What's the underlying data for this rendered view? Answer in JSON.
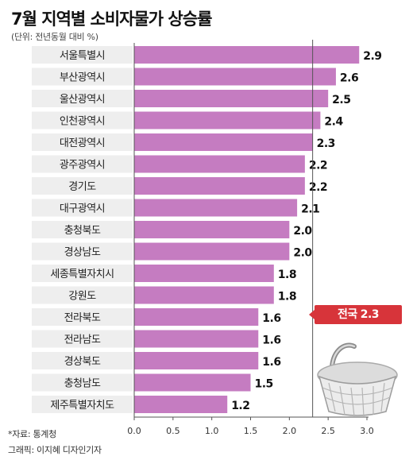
{
  "title": "7월 지역별 소비자물가 상승률",
  "unit_note": "(단위: 전년동월 대비 %)",
  "callout": {
    "label": "전국",
    "value": "2.3"
  },
  "footer": {
    "source": "*자료: 통계청",
    "graphic": "그래픽: 이지혜 디자인기자"
  },
  "colors": {
    "bar": "#c57cc1",
    "label_bg": "#eeeeee",
    "callout": "#d7343a",
    "national_line": "#555555"
  },
  "icons": [
    "shopping-basket-icon"
  ],
  "chart_data": {
    "type": "bar",
    "orientation": "horizontal",
    "categories": [
      "서울특별시",
      "부산광역시",
      "울산광역시",
      "인천광역시",
      "대전광역시",
      "광주광역시",
      "경기도",
      "대구광역시",
      "충청북도",
      "경상남도",
      "세종특별자치시",
      "강원도",
      "전라북도",
      "전라남도",
      "경상북도",
      "충청남도",
      "제주특별자치도"
    ],
    "values": [
      2.9,
      2.6,
      2.5,
      2.4,
      2.3,
      2.2,
      2.2,
      2.1,
      2.0,
      2.0,
      1.8,
      1.8,
      1.6,
      1.6,
      1.6,
      1.5,
      1.2
    ],
    "value_labels": [
      "2.9",
      "2.6",
      "2.5",
      "2.4",
      "2.3",
      "2.2",
      "2.2",
      "2.1",
      "2.0",
      "2.0",
      "1.8",
      "1.8",
      "1.6",
      "1.6",
      "1.6",
      "1.5",
      "1.2"
    ],
    "xlim": [
      0,
      3.0
    ],
    "xticks": [
      "0.0",
      "0.5",
      "1.0",
      "1.5",
      "2.0",
      "2.5",
      "3.0"
    ],
    "reference_line": {
      "label": "전국",
      "value": 2.3
    },
    "grid": false
  }
}
